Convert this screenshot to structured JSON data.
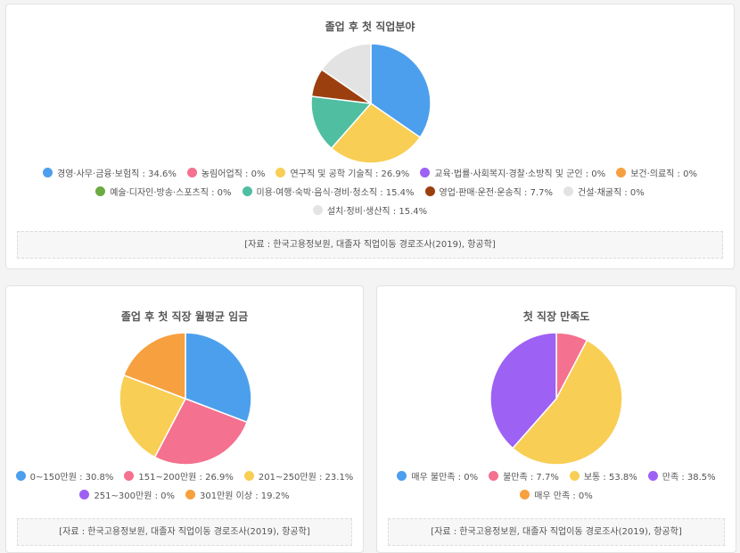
{
  "colors": {
    "blue": "#4c9fec",
    "pink": "#f4718f",
    "yellow": "#f8ce55",
    "purple": "#9d61f4",
    "orange": "#f7a03f",
    "green": "#6bab42",
    "teal": "#50bea1",
    "brown": "#9c3f0f",
    "gray": "#e3e3e3"
  },
  "chart_data": [
    {
      "type": "pie",
      "title": "졸업 후 첫 직업분야",
      "unit": "%",
      "series": [
        {
          "name": "경영·사무·금융·보험직",
          "value": 34.6,
          "color": "#4c9fec"
        },
        {
          "name": "농림어업직",
          "value": 0,
          "color": "#f4718f"
        },
        {
          "name": "연구직 및 공학 기술직",
          "value": 26.9,
          "color": "#f8ce55"
        },
        {
          "name": "교육·법률·사회복지·경찰·소방직 및 군인",
          "value": 0,
          "color": "#9d61f4"
        },
        {
          "name": "보건·의료직",
          "value": 0,
          "color": "#f7a03f"
        },
        {
          "name": "예술·디자인·방송·스포츠직",
          "value": 0,
          "color": "#6bab42"
        },
        {
          "name": "미용·여행·숙박·음식·경비·청소직",
          "value": 15.4,
          "color": "#50bea1"
        },
        {
          "name": "영업·판매·운전·운송직",
          "value": 7.7,
          "color": "#9c3f0f"
        },
        {
          "name": "건설·채굴직",
          "value": 0,
          "color": "#e3e3e3"
        },
        {
          "name": "설치·정비·생산직",
          "value": 15.4,
          "color": "#e3e3e3"
        }
      ],
      "legend_rows": [
        5,
        4,
        1
      ],
      "source": "[자료 : 한국고용정보원, 대졸자 직업이동 경로조사(2019), 항공학]"
    },
    {
      "type": "pie",
      "title": "졸업 후 첫 직장 월평균 임금",
      "unit": "%",
      "series": [
        {
          "name": "0~150만원",
          "value": 30.8,
          "color": "#4c9fec"
        },
        {
          "name": "151~200만원",
          "value": 26.9,
          "color": "#f4718f"
        },
        {
          "name": "201~250만원",
          "value": 23.1,
          "color": "#f8ce55"
        },
        {
          "name": "251~300만원",
          "value": 0,
          "color": "#9d61f4"
        },
        {
          "name": "301만원 이상",
          "value": 19.2,
          "color": "#f7a03f"
        }
      ],
      "legend_rows": [
        3,
        2
      ],
      "source": "[자료 : 한국고용정보원, 대졸자 직업이동 경로조사(2019), 항공학]"
    },
    {
      "type": "pie",
      "title": "첫 직장 만족도",
      "unit": "%",
      "series": [
        {
          "name": "매우 불만족",
          "value": 0,
          "color": "#4c9fec"
        },
        {
          "name": "불만족",
          "value": 7.7,
          "color": "#f4718f"
        },
        {
          "name": "보통",
          "value": 53.8,
          "color": "#f8ce55"
        },
        {
          "name": "만족",
          "value": 38.5,
          "color": "#9d61f4"
        },
        {
          "name": "매우 만족",
          "value": 0,
          "color": "#f7a03f"
        }
      ],
      "legend_rows": [
        4,
        1
      ],
      "source": "[자료 : 한국고용정보원, 대졸자 직업이동 경로조사(2019), 항공학]"
    }
  ]
}
